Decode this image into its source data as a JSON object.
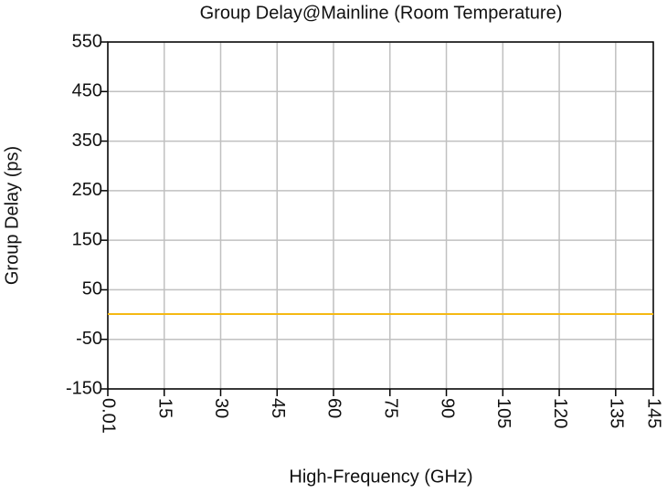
{
  "chart_data": {
    "type": "line",
    "title": "Group Delay@Mainline (Room Temperature)",
    "x_label": "High-Frequency (GHz)",
    "y_label": "Group Delay (ps)",
    "x": [
      0.01,
      30,
      96,
      145
    ],
    "series": [
      {
        "name": "Group Delay",
        "color": "#f5b914",
        "values": [
          1,
          1,
          1,
          1
        ]
      }
    ],
    "xlim": [
      0.01,
      145
    ],
    "xticks": [
      0.01,
      15,
      30,
      45,
      60,
      75,
      90,
      105,
      120,
      135,
      145
    ],
    "ylim": [
      -150,
      550
    ],
    "yticks": [
      -150,
      -50,
      50,
      150,
      250,
      350,
      450,
      550
    ],
    "grid": true
  }
}
